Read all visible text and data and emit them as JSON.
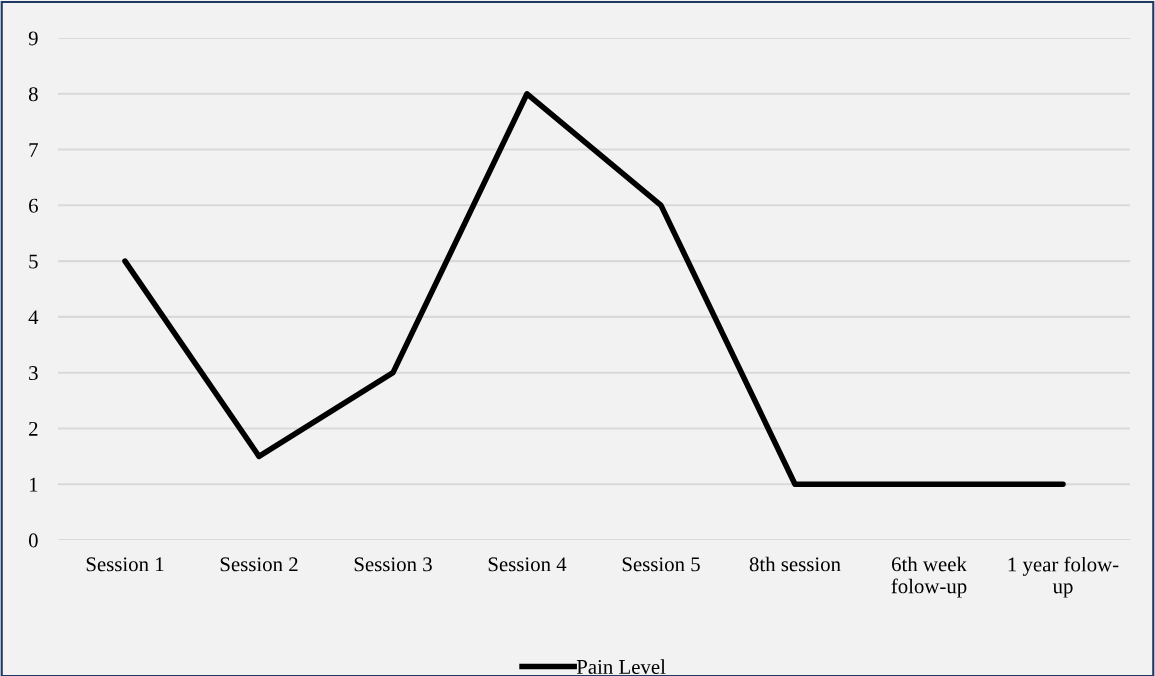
{
  "chart_data": {
    "type": "line",
    "categories": [
      "Session 1",
      "Session 2",
      "Session 3",
      "Session 4",
      "Session 5",
      "8th session",
      "6th week\nfolow-up",
      "1 year folow-\nup"
    ],
    "series": [
      {
        "name": "Pain Level",
        "color": "#000000",
        "values": [
          5,
          1.5,
          3,
          8,
          6,
          1,
          1,
          1
        ]
      }
    ],
    "ylim": [
      0,
      9
    ],
    "yticks": [
      0,
      1,
      2,
      3,
      4,
      5,
      6,
      7,
      8,
      9
    ],
    "grid": "y",
    "legend": "bottom",
    "marker": "none",
    "line_style": "solid"
  }
}
